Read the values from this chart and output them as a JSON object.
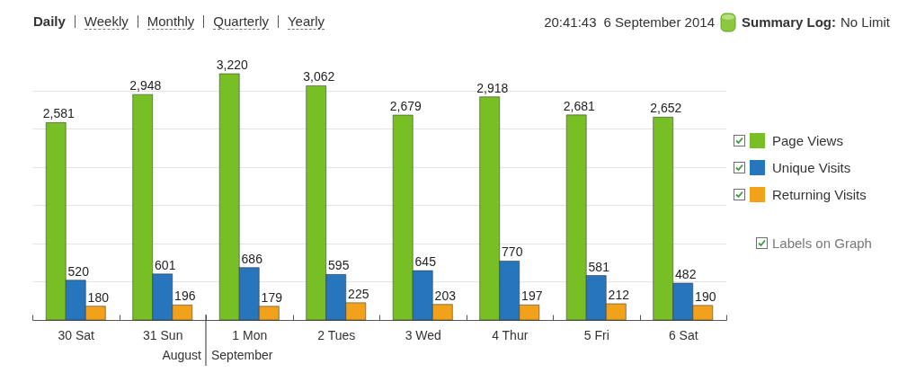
{
  "chart_data": {
    "type": "bar",
    "categories": [
      "30 Sat",
      "31 Sun",
      "1 Mon",
      "2 Tues",
      "3 Wed",
      "4 Thur",
      "5 Fri",
      "6 Sat"
    ],
    "series": [
      {
        "name": "Page Views",
        "color": "#78bf26",
        "values": [
          2581,
          2948,
          3220,
          3062,
          2679,
          2918,
          2681,
          2652
        ],
        "value_labels": [
          "2,581",
          "2,948",
          "3,220",
          "3,062",
          "2,679",
          "2,918",
          "2,681",
          "2,652"
        ]
      },
      {
        "name": "Unique Visits",
        "color": "#2775bd",
        "values": [
          520,
          601,
          686,
          595,
          645,
          770,
          581,
          482
        ],
        "value_labels": [
          "520",
          "601",
          "686",
          "595",
          "645",
          "770",
          "581",
          "482"
        ]
      },
      {
        "name": "Returning Visits",
        "color": "#f2a21a",
        "values": [
          180,
          196,
          179,
          225,
          203,
          197,
          212,
          190
        ],
        "value_labels": [
          "180",
          "196",
          "179",
          "225",
          "203",
          "197",
          "212",
          "190"
        ]
      }
    ],
    "yticks": [
      {
        "value": 500,
        "label": null
      },
      {
        "value": 1000,
        "label": null
      },
      {
        "value": 1500,
        "label": null
      },
      {
        "value": 2000,
        "label": null
      },
      {
        "value": 2500,
        "label": null
      },
      {
        "value": 3000,
        "label": null
      }
    ],
    "grid": "y",
    "legend": "right",
    "tick_labels": "x",
    "annotations": [
      "Daily",
      "Weekly",
      "Monthly",
      "Quarterly",
      "Yearly",
      "20:41:43",
      "6 September 2014",
      "Summary Log:",
      "No Limit",
      "Labels on Graph",
      "August",
      "September"
    ]
  }
}
